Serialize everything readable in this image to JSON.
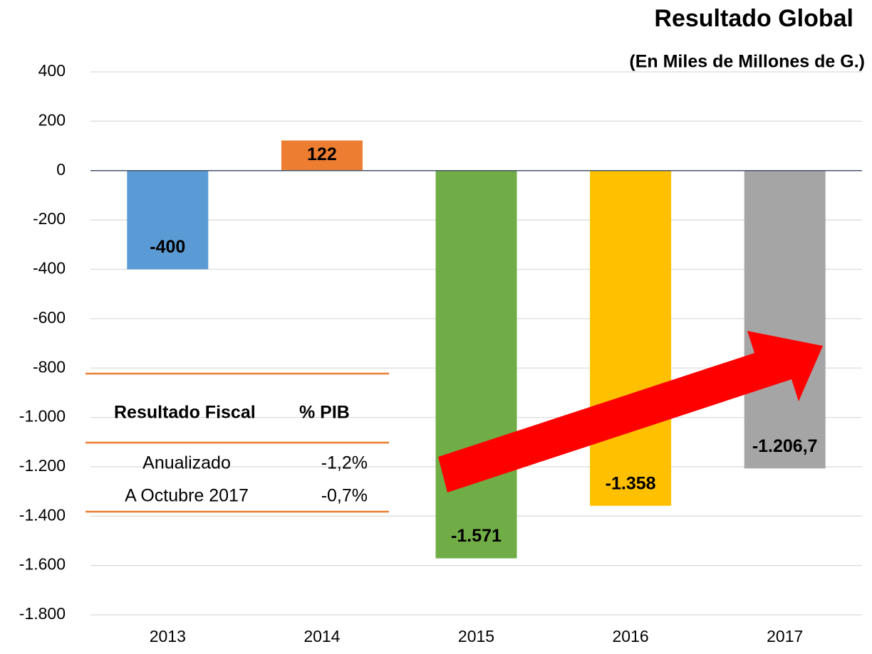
{
  "chart_data": {
    "type": "bar",
    "title": "Resultado Global",
    "subtitle": "(En Miles de Millones de G.)",
    "categories": [
      "2013",
      "2014",
      "2015",
      "2016",
      "2017"
    ],
    "values": [
      -400,
      122,
      -1571,
      -1358,
      -1206.7
    ],
    "value_labels": [
      "-400",
      "122",
      "-1.571",
      "-1.358",
      "-1.206,7"
    ],
    "colors": [
      "#5b9bd5",
      "#ed7d31",
      "#70ad47",
      "#ffc000",
      "#a5a5a5"
    ],
    "ylim": [
      -1800,
      400
    ],
    "yticks": [
      400,
      200,
      0,
      -200,
      -400,
      -600,
      -800,
      {
        "value": -1000,
        "label": "-1.000"
      },
      {
        "value": -1200,
        "label": "-1.200"
      },
      {
        "value": -1400,
        "label": "-1.400"
      },
      {
        "value": -1600,
        "label": "-1.600"
      },
      {
        "value": -1800,
        "label": "-1.800"
      }
    ],
    "grid": true
  },
  "table": {
    "header": [
      "Resultado Fiscal",
      "% PIB"
    ],
    "rows": [
      [
        "Anualizado",
        "-1,2%"
      ],
      [
        "A Octubre 2017",
        "-0,7%"
      ]
    ]
  }
}
